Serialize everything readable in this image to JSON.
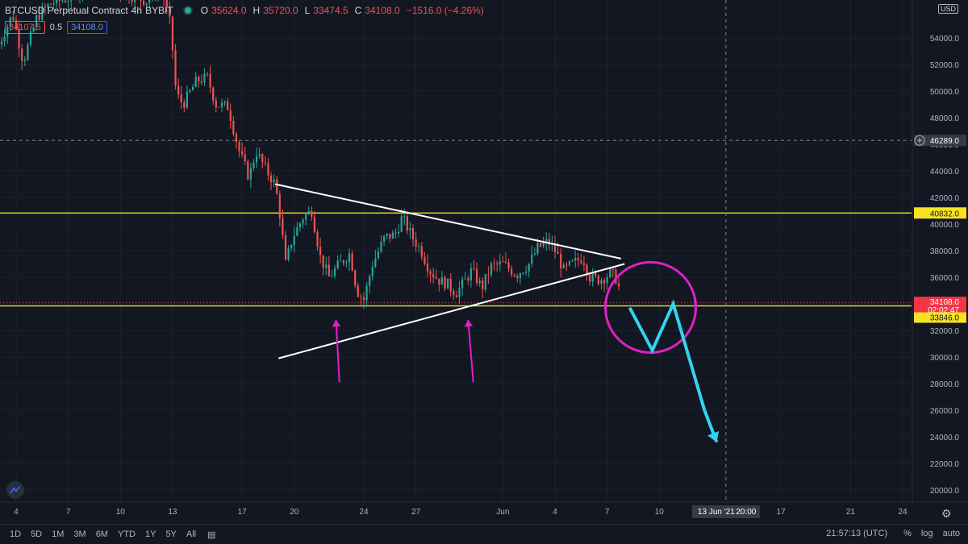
{
  "header": {
    "symbol": "BTCUSD Perpetual Contract",
    "interval": "4h",
    "exchange": "BYBIT",
    "ohlc": [
      {
        "label": "O",
        "value": "35624.0"
      },
      {
        "label": "H",
        "value": "35720.0"
      },
      {
        "label": "L",
        "value": "33474.5"
      },
      {
        "label": "C",
        "value": "34108.0"
      },
      {
        "label": "",
        "value": "−1516.0 (−4.26%)"
      }
    ]
  },
  "trade": {
    "sell": "34107.5",
    "spread": "0.5",
    "buy": "34108.0"
  },
  "currency": "USD",
  "toolbar": {
    "ranges": [
      "1D",
      "5D",
      "1M",
      "3M",
      "6M",
      "YTD",
      "1Y",
      "5Y",
      "All"
    ],
    "clock": "21:57:13 (UTC)",
    "percent": "%",
    "log": "log",
    "auto": "auto"
  },
  "colors": {
    "background": "#131722",
    "up": "#26a69a",
    "down": "#ef5350",
    "support_resistance": "#f7e322",
    "trendline": "#ffffff",
    "pink": "#e020c8",
    "projection": "#33d3f0",
    "grid": "#1e222d"
  },
  "chart_data": {
    "type": "candlestick",
    "interval": "4h",
    "ylim": [
      18500,
      57500
    ],
    "y_ticks": [
      "20000.0",
      "22000.0",
      "24000.0",
      "26000.0",
      "28000.0",
      "30000.0",
      "32000.0",
      "34000.0",
      "36000.0",
      "38000.0",
      "40000.0",
      "42000.0",
      "44000.0",
      "46000.0",
      "48000.0",
      "50000.0",
      "52000.0",
      "54000.0"
    ],
    "x_ticks": [
      {
        "label": "4",
        "day": 4
      },
      {
        "label": "7",
        "day": 7
      },
      {
        "label": "10",
        "day": 10
      },
      {
        "label": "13",
        "day": 13
      },
      {
        "label": "17",
        "day": 17
      },
      {
        "label": "20",
        "day": 20
      },
      {
        "label": "24",
        "day": 24
      },
      {
        "label": "27",
        "day": 27
      },
      {
        "label": "Jun",
        "day": 32
      },
      {
        "label": "4",
        "day": 35
      },
      {
        "label": "7",
        "day": 38
      },
      {
        "label": "10",
        "day": 41
      },
      {
        "label": "17",
        "day": 48
      },
      {
        "label": "21",
        "day": 52
      },
      {
        "label": "24",
        "day": 55
      }
    ],
    "crosshair": {
      "date": "13 Jun '21",
      "time": "20:00",
      "day": 44.83,
      "price": 46289.0,
      "price_label": "46289.0"
    },
    "horizontal_lines": [
      {
        "price": 40832.0,
        "label": "40832.0"
      },
      {
        "price": 33846.0,
        "label": "33846.0"
      }
    ],
    "last_price": {
      "price": 34108.0,
      "label": "34108.0",
      "countdown": "02:02:47"
    },
    "trendlines": [
      {
        "name": "Descending resistance",
        "points": [
          {
            "day": 18.9,
            "price": 43000
          },
          {
            "day": 38.8,
            "price": 37400
          }
        ]
      },
      {
        "name": "Ascending support",
        "points": [
          {
            "day": 19.1,
            "price": 29900
          },
          {
            "day": 39.0,
            "price": 37000
          }
        ]
      }
    ],
    "annotations": [
      {
        "type": "arrow-up",
        "color": "pink",
        "from": {
          "day": 22.6,
          "price": 28100
        },
        "to": {
          "day": 22.4,
          "price": 32800
        }
      },
      {
        "type": "arrow-up",
        "color": "pink",
        "from": {
          "day": 30.3,
          "price": 28100
        },
        "to": {
          "day": 30.0,
          "price": 32800
        }
      },
      {
        "type": "circle",
        "color": "pink",
        "center": {
          "day": 40.5,
          "price": 33730
        },
        "radius_days": 2.6
      },
      {
        "type": "path",
        "color": "projection",
        "points": [
          {
            "day": 39.3,
            "price": 33700
          },
          {
            "day": 40.6,
            "price": 30500
          },
          {
            "day": 41.8,
            "price": 34000
          },
          {
            "day": 43.6,
            "price": 26000
          },
          {
            "day": 44.3,
            "price": 23600
          }
        ]
      }
    ],
    "ohlc_anchors": [
      {
        "day": 3.0,
        "price": 53500
      },
      {
        "day": 3.8,
        "price": 55800
      },
      {
        "day": 4.4,
        "price": 52200
      },
      {
        "day": 5.2,
        "price": 55600
      },
      {
        "day": 6.0,
        "price": 56600
      },
      {
        "day": 7.0,
        "price": 57000
      },
      {
        "day": 8.0,
        "price": 58000
      },
      {
        "day": 9.0,
        "price": 58200
      },
      {
        "day": 10.5,
        "price": 57200
      },
      {
        "day": 11.5,
        "price": 56800
      },
      {
        "day": 12.3,
        "price": 58000
      },
      {
        "day": 12.9,
        "price": 54800
      },
      {
        "day": 13.2,
        "price": 49800
      },
      {
        "day": 13.6,
        "price": 49000
      },
      {
        "day": 14.4,
        "price": 50800
      },
      {
        "day": 15.0,
        "price": 51000
      },
      {
        "day": 15.5,
        "price": 49000
      },
      {
        "day": 16.2,
        "price": 48800
      },
      {
        "day": 16.8,
        "price": 45600
      },
      {
        "day": 17.4,
        "price": 43500
      },
      {
        "day": 17.8,
        "price": 45500
      },
      {
        "day": 18.4,
        "price": 44000
      },
      {
        "day": 18.9,
        "price": 43000
      },
      {
        "day": 19.2,
        "price": 40500
      },
      {
        "day": 19.5,
        "price": 37000
      },
      {
        "day": 19.9,
        "price": 39000
      },
      {
        "day": 20.5,
        "price": 40500
      },
      {
        "day": 21.0,
        "price": 41000
      },
      {
        "day": 21.5,
        "price": 37500
      },
      {
        "day": 22.0,
        "price": 36000
      },
      {
        "day": 22.6,
        "price": 37000
      },
      {
        "day": 23.2,
        "price": 37800
      },
      {
        "day": 23.6,
        "price": 35000
      },
      {
        "day": 24.0,
        "price": 34300
      },
      {
        "day": 24.5,
        "price": 37000
      },
      {
        "day": 25.2,
        "price": 39000
      },
      {
        "day": 25.8,
        "price": 39200
      },
      {
        "day": 26.2,
        "price": 40500
      },
      {
        "day": 26.8,
        "price": 39000
      },
      {
        "day": 27.3,
        "price": 38000
      },
      {
        "day": 27.8,
        "price": 36500
      },
      {
        "day": 28.3,
        "price": 35800
      },
      {
        "day": 28.8,
        "price": 35500
      },
      {
        "day": 29.3,
        "price": 34800
      },
      {
        "day": 29.7,
        "price": 35500
      },
      {
        "day": 30.2,
        "price": 36500
      },
      {
        "day": 30.8,
        "price": 35200
      },
      {
        "day": 31.3,
        "price": 36800
      },
      {
        "day": 32.0,
        "price": 37000
      },
      {
        "day": 32.8,
        "price": 36200
      },
      {
        "day": 33.5,
        "price": 37000
      },
      {
        "day": 34.0,
        "price": 38200
      },
      {
        "day": 34.6,
        "price": 38700
      },
      {
        "day": 35.1,
        "price": 37800
      },
      {
        "day": 35.5,
        "price": 36500
      },
      {
        "day": 36.0,
        "price": 37000
      },
      {
        "day": 36.6,
        "price": 37500
      },
      {
        "day": 37.0,
        "price": 36000
      },
      {
        "day": 37.6,
        "price": 35800
      },
      {
        "day": 38.2,
        "price": 36300
      },
      {
        "day": 38.6,
        "price": 35800
      },
      {
        "day": 38.8,
        "price": 34108
      }
    ]
  }
}
